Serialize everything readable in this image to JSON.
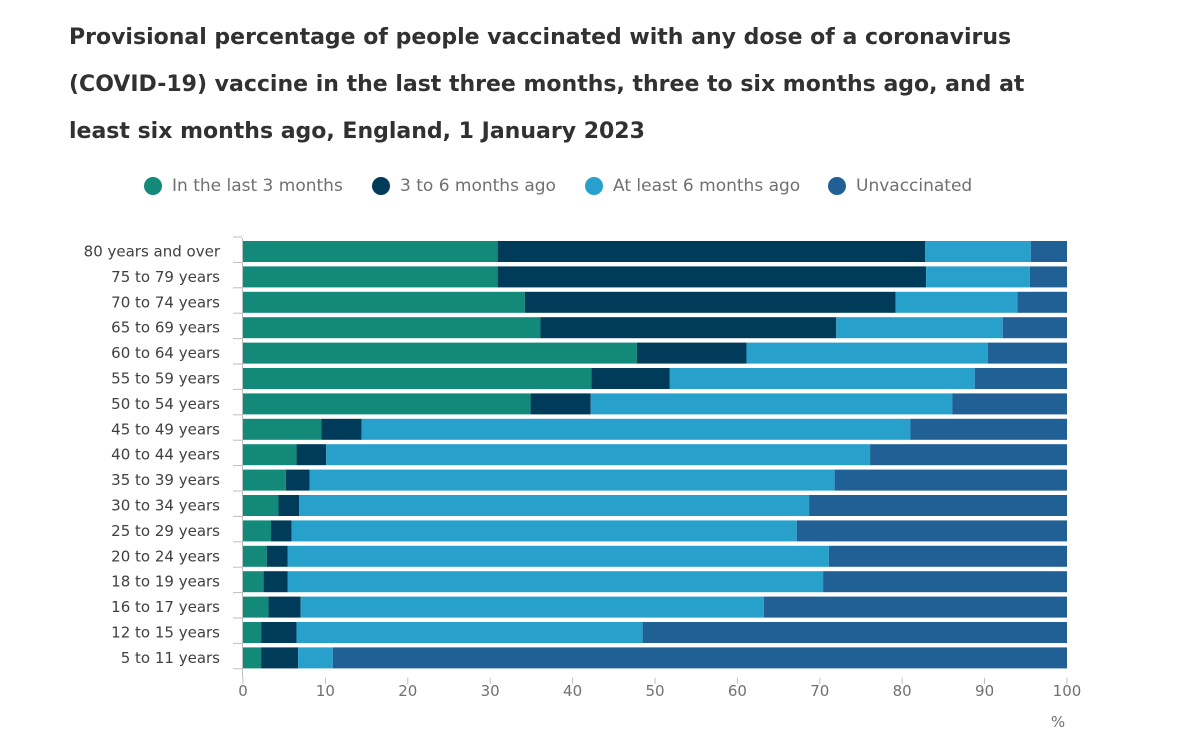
{
  "chart_data": {
    "type": "bar",
    "orientation": "horizontal",
    "stacked": true,
    "title": "Provisional percentage of people vaccinated with any dose of a coronavirus (COVID-19) vaccine in the last three months, three to six months ago, and at least six months ago, England, 1 January 2023",
    "title_lines": [
      "Provisional percentage of people vaccinated with any dose of a coronavirus",
      "(COVID-19) vaccine in the last three months, three to six months ago, and at",
      "least six months ago, England, 1 January 2023"
    ],
    "xlabel": "%",
    "xlim": [
      0,
      100
    ],
    "xticks": [
      "0",
      "10",
      "20",
      "30",
      "40",
      "50",
      "60",
      "70",
      "80",
      "90",
      "100"
    ],
    "legend_position": "top",
    "categories": [
      "80 years and over",
      "75 to 79 years",
      "70 to 74 years",
      "65 to 69 years",
      "60 to 64 years",
      "55 to 59 years",
      "50 to 54 years",
      "45 to 49 years",
      "40 to 44 years",
      "35 to 39 years",
      "30 to 34 years",
      "25 to 29 years",
      "20 to 24 years",
      "18 to 19 years",
      "16 to 17 years",
      "12 to 15 years",
      "5 to 11 years"
    ],
    "series": [
      {
        "name": "In the last 3 months",
        "color": "#13897a",
        "values": [
          30.9,
          30.9,
          34.2,
          36.1,
          47.8,
          42.3,
          34.9,
          9.5,
          6.5,
          5.2,
          4.3,
          3.4,
          2.9,
          2.5,
          3.1,
          2.2,
          2.2
        ]
      },
      {
        "name": "3 to 6 months ago",
        "color": "#003b59",
        "values": [
          51.9,
          52.0,
          45.0,
          35.9,
          13.3,
          9.5,
          7.3,
          4.9,
          3.6,
          2.9,
          2.5,
          2.5,
          2.5,
          2.9,
          3.9,
          4.3,
          4.5
        ]
      },
      {
        "name": "At least 6 months ago",
        "color": "#27a0cc",
        "values": [
          12.8,
          12.6,
          14.8,
          20.2,
          29.3,
          37.0,
          43.9,
          66.6,
          66.0,
          63.7,
          61.9,
          61.3,
          65.7,
          65.0,
          56.2,
          42.0,
          4.2
        ]
      },
      {
        "name": "Unvaccinated",
        "color": "#206095",
        "values": [
          4.4,
          4.5,
          6.0,
          7.8,
          9.6,
          11.2,
          13.9,
          19.0,
          23.9,
          28.2,
          31.3,
          32.8,
          28.9,
          29.6,
          36.8,
          51.5,
          89.1
        ]
      }
    ]
  }
}
